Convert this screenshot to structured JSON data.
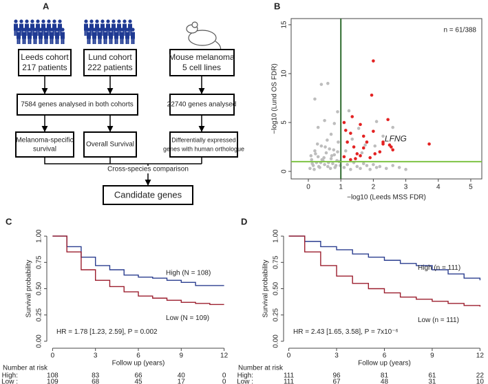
{
  "diagram": {
    "panel": "A",
    "sources": [
      [
        "Leeds cohort",
        "217 patients"
      ],
      [
        "Lund cohort",
        "222 patients"
      ],
      [
        "Mouse melanoma",
        "5 cell lines"
      ]
    ],
    "analyses": [
      "7584 genes analysed in both cohorts",
      "22740 genes analysed"
    ],
    "outcomes": [
      [
        "Melanoma-specific",
        "survival"
      ],
      [
        "Overall Survival"
      ],
      [
        "Differentially expressed",
        "genes with human orthologue"
      ]
    ],
    "comparison": "Cross-species comparison",
    "result": "Candidate genes"
  },
  "chart_data": [
    {
      "type": "scatter",
      "panel": "B",
      "x_label": "−log10 (Leeds MSS FDR)",
      "y_label": "−log10 (Lund OS FDR)",
      "annotations": [
        "n = 61/388",
        "LFNG"
      ],
      "xlim": [
        -0.53,
        5.34
      ],
      "ylim": [
        -0.77,
        15.63
      ],
      "xticks": [
        0,
        1,
        2,
        3,
        4,
        5
      ],
      "yticks": [
        0,
        5,
        10,
        15
      ],
      "reference_lines": [
        {
          "axis": "x",
          "value": 1,
          "color": "#2e6b2e"
        },
        {
          "axis": "y",
          "value": 1,
          "color": "#7dc242"
        }
      ],
      "series": [
        {
          "color": "#bdbdbd",
          "x": [
            0.05,
            0.1,
            0.15,
            0.2,
            0.25,
            0.3,
            0.35,
            0.4,
            0.45,
            0.5,
            0.55,
            0.6,
            0.65,
            0.7,
            0.75,
            0.8,
            0.85,
            0.9,
            0.95,
            0.08,
            0.18,
            0.28,
            0.38,
            0.48,
            0.58,
            0.68,
            0.78,
            0.88,
            0.98,
            0.12,
            0.22,
            0.32,
            0.42,
            0.52,
            0.62,
            0.72,
            0.82,
            0.92,
            0.3,
            0.5,
            0.7,
            0.9,
            0.4,
            0.6,
            0.8,
            0.2,
            1.1,
            1.2,
            1.3,
            1.4,
            1.5,
            1.6,
            1.7,
            1.8,
            1.9,
            2.0,
            2.1,
            2.2,
            2.4,
            2.6,
            2.8,
            3.0,
            1.15,
            1.35,
            1.55,
            1.75,
            2.1,
            2.3,
            2.6,
            1.25,
            1.65,
            2.05
          ],
          "values": [
            0.3,
            1.2,
            0.6,
            2.1,
            0.9,
            1.5,
            0.4,
            2.6,
            1.1,
            0.7,
            1.9,
            0.5,
            2.3,
            1.3,
            0.8,
            1.7,
            0.6,
            2.0,
            1.0,
            1.6,
            0.2,
            2.8,
            0.9,
            1.4,
            3.2,
            0.3,
            2.2,
            1.1,
            0.6,
            0.8,
            1.8,
            0.5,
            1.2,
            2.5,
            0.9,
            1.6,
            0.4,
            3.0,
            4.5,
            5.2,
            3.8,
            6.1,
            8.9,
            9.0,
            4.9,
            7.4,
            0.4,
            0.7,
            0.2,
            0.9,
            0.5,
            0.3,
            0.8,
            0.6,
            0.2,
            0.7,
            0.4,
            0.5,
            0.3,
            0.6,
            0.4,
            0.2,
            2.1,
            3.3,
            4.4,
            2.7,
            5.1,
            3.6,
            4.5,
            6.2,
            1.9,
            2.6
          ]
        },
        {
          "color": "#e32222",
          "x": [
            2.0,
            1.95,
            2.45,
            1.35,
            1.1,
            1.6,
            1.15,
            2.0,
            1.3,
            1.7,
            1.8,
            2.3,
            1.4,
            2.5,
            2.6,
            2.3,
            3.72,
            1.2,
            1.5,
            1.1,
            1.3,
            1.9,
            1.6,
            2.2,
            1.45,
            2.55,
            1.7,
            2.05
          ],
          "values": [
            11.3,
            7.8,
            5.3,
            5.6,
            5.0,
            4.8,
            4.2,
            4.1,
            3.9,
            3.6,
            3.0,
            3.0,
            2.5,
            2.7,
            2.2,
            2.8,
            2.8,
            3.0,
            1.8,
            1.5,
            1.2,
            1.4,
            1.6,
            2.0,
            1.3,
            2.5,
            2.4,
            1.8
          ]
        }
      ]
    },
    {
      "type": "line",
      "step": true,
      "panel": "C",
      "x_label": "Follow up (years)",
      "y_label": "Survival probability",
      "annotation": "HR = 1.78 [1.23, 2.59], P = 0.002",
      "xlim": [
        -0.5,
        12.5
      ],
      "ylim": [
        -0.04,
        1.04
      ],
      "xticks": [
        0,
        3,
        6,
        9,
        12
      ],
      "yticks": [
        {
          "value": 0,
          "label": "0.00"
        },
        {
          "value": 0.25,
          "label": "0.25"
        },
        {
          "value": 0.5,
          "label": "0.50"
        },
        {
          "value": 0.75,
          "label": "0.75"
        },
        {
          "value": 1,
          "label": "1.00"
        }
      ],
      "x": [
        0,
        1,
        2,
        3,
        4,
        5,
        6,
        7,
        8,
        9,
        10,
        11,
        12
      ],
      "series": [
        {
          "name": "High (N = 108)",
          "color": "#2a3d8f",
          "values": [
            1.0,
            0.9,
            0.8,
            0.72,
            0.68,
            0.63,
            0.61,
            0.6,
            0.58,
            0.56,
            0.53,
            0.53,
            0.53
          ]
        },
        {
          "name": "Low (N = 109)",
          "color": "#9b1c2c",
          "values": [
            1.0,
            0.85,
            0.68,
            0.58,
            0.52,
            0.47,
            0.43,
            0.41,
            0.39,
            0.37,
            0.36,
            0.35,
            0.35
          ]
        }
      ],
      "number_at_risk": {
        "title": "Number at risk",
        "rows": [
          {
            "label": "High:",
            "values": [
              108,
              83,
              66,
              40,
              0
            ]
          },
          {
            "label": "Low :",
            "values": [
              109,
              68,
              45,
              17,
              0
            ]
          }
        ]
      }
    },
    {
      "type": "line",
      "step": true,
      "panel": "D",
      "x_label": "Follow up (years)",
      "y_label": "Survival probability",
      "annotation": "HR = 2.43 [1.65, 3.58], P = 7x10⁻⁶",
      "xlim": [
        -0.5,
        12.2
      ],
      "ylim": [
        -0.04,
        1.04
      ],
      "xticks": [
        0,
        3,
        6,
        9,
        12
      ],
      "yticks": [
        {
          "value": 0,
          "label": "0.00"
        },
        {
          "value": 0.25,
          "label": "0.25"
        },
        {
          "value": 0.5,
          "label": "0.50"
        },
        {
          "value": 0.75,
          "label": "0.75"
        },
        {
          "value": 1,
          "label": "1.00"
        }
      ],
      "x": [
        0,
        1,
        2,
        3,
        4,
        5,
        6,
        7,
        8,
        9,
        10,
        11,
        12
      ],
      "series": [
        {
          "name": "High (n = 111)",
          "color": "#2a3d8f",
          "values": [
            1.0,
            0.95,
            0.9,
            0.87,
            0.83,
            0.8,
            0.77,
            0.74,
            0.72,
            0.68,
            0.64,
            0.6,
            0.58
          ]
        },
        {
          "name": "Low (n = 111)",
          "color": "#9b1c2c",
          "values": [
            1.0,
            0.85,
            0.72,
            0.62,
            0.55,
            0.5,
            0.46,
            0.42,
            0.4,
            0.38,
            0.36,
            0.34,
            0.33
          ]
        }
      ],
      "number_at_risk": {
        "title": "Number at risk",
        "rows": [
          {
            "label": "High:",
            "values": [
              111,
              96,
              81,
              61,
              22
            ]
          },
          {
            "label": "Low :",
            "values": [
              111,
              67,
              48,
              31,
              10
            ]
          }
        ]
      }
    }
  ]
}
